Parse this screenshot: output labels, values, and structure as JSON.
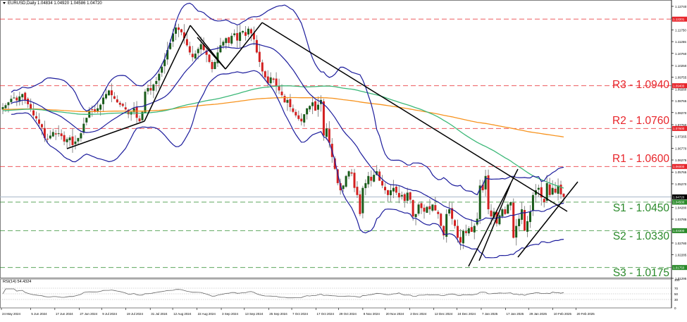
{
  "header": {
    "symbol_line": "EURUSD,Daily  1.04834 1.04920 1.04586 1.04720"
  },
  "rsi": {
    "label": "RSI(14) 54.4324",
    "levels": [
      "100",
      "70",
      "50",
      "30",
      "0"
    ]
  },
  "levels": {
    "r3": {
      "label": "R3 - 1.0940",
      "price": 1.094,
      "tag": "1.09400"
    },
    "r2": {
      "label": "R2 - 1.0760",
      "price": 1.076,
      "tag": "1.07600"
    },
    "r1": {
      "label": "R1 - 1.0600",
      "price": 1.06,
      "tag": "1.06000"
    },
    "top": {
      "label": "",
      "price": 1.12201,
      "tag": "1.12201"
    },
    "s1": {
      "label": "S1 - 1.0450",
      "price": 1.045,
      "tag": "1.04500"
    },
    "s2": {
      "label": "S2 - 1.0330",
      "price": 1.033,
      "tag": "1.03300"
    },
    "s3": {
      "label": "S3 - 1.0175",
      "price": 1.0175,
      "tag": "1.01750"
    },
    "current": {
      "price": 1.0472,
      "tag": "1.04720"
    }
  },
  "colors": {
    "resistance": "#e8242a",
    "support": "#2a8a2a",
    "bull_candle": "#1a5c1a",
    "bear_candle": "#d32020",
    "bollinger": "#1c1c9c",
    "ma_green": "#3cb878",
    "ma_orange": "#f7931e",
    "trendline": "#000000",
    "current_price_line": "#a8b8c8"
  },
  "chart_data": [
    {
      "type": "candlestick",
      "title": "EURUSD,Daily",
      "ohlc_header": {
        "open": 1.04834,
        "high": 1.0492,
        "low": 1.04586,
        "close": 1.0472
      },
      "xlabel": "",
      "ylabel": "",
      "ylim": [
        1.0128,
        1.129
      ],
      "y_ticks": [
        "1.12740",
        "1.12245",
        "1.11750",
        "1.11255",
        "1.10760",
        "1.10250",
        "1.09755",
        "1.09260",
        "1.08765",
        "1.08270",
        "1.07760",
        "1.07265",
        "1.06770",
        "1.06275",
        "1.05765",
        "1.05270",
        "1.04280",
        "1.03785",
        "1.02780",
        "1.02285",
        "1.01295"
      ],
      "x_ticks": [
        "24 May 2024",
        "5 Jun 2024",
        "17 Jun 2024",
        "27 Jun 2024",
        "9 Jul 2024",
        "19 Jul 2024",
        "31 Jul 2024",
        "12 Aug 2024",
        "22 Aug 2024",
        "3 Sep 2024",
        "13 Sep 2024",
        "25 Sep 2024",
        "7 Oct 2024",
        "17 Oct 2024",
        "29 Oct 2024",
        "8 Nov 2024",
        "20 Nov 2024",
        "2 Dec 2024",
        "12 Dec 2024",
        "24 Dec 2024",
        "7 Jan 2025",
        "17 Jan 2025",
        "29 Jan 2025",
        "10 Feb 2025",
        "20 Feb 2025"
      ],
      "horizontal_levels": [
        {
          "name": "R3",
          "value": 1.094
        },
        {
          "name": "R2",
          "value": 1.076
        },
        {
          "name": "R1",
          "value": 1.06
        },
        {
          "name": "S1",
          "value": 1.045
        },
        {
          "name": "S2",
          "value": 1.033
        },
        {
          "name": "S3",
          "value": 1.0175
        },
        {
          "name": "Top",
          "value": 1.12201
        }
      ],
      "series_closes_approx": [
        1.085,
        1.0858,
        1.087,
        1.0885,
        1.089,
        1.0878,
        1.0895,
        1.0905,
        1.088,
        1.0862,
        1.084,
        1.0815,
        1.0802,
        1.078,
        1.0765,
        1.072,
        1.0715,
        1.073,
        1.0745,
        1.0735,
        1.074,
        1.0728,
        1.0705,
        1.0715,
        1.0722,
        1.069,
        1.0705,
        1.072,
        1.074,
        1.078,
        1.0805,
        1.0835,
        1.084,
        1.083,
        1.0845,
        1.086,
        1.089,
        1.0905,
        1.092,
        1.09,
        1.0885,
        1.087,
        1.086,
        1.0855,
        1.084,
        1.082,
        1.083,
        1.0845,
        1.0805,
        1.079,
        1.083,
        1.0915,
        1.093,
        1.092,
        1.0945,
        1.096,
        1.099,
        1.102,
        1.105,
        1.109,
        1.112,
        1.116,
        1.1185,
        1.1175,
        1.1165,
        1.114,
        1.111,
        1.108,
        1.106,
        1.1075,
        1.1095,
        1.1115,
        1.109,
        1.107,
        1.104,
        1.101,
        1.104,
        1.108,
        1.111,
        1.1125,
        1.114,
        1.112,
        1.115,
        1.116,
        1.113,
        1.1165,
        1.117,
        1.115,
        1.118,
        1.116,
        1.1135,
        1.108,
        1.104,
        1.1,
        1.0975,
        1.095,
        1.0975,
        1.0965,
        1.094,
        1.092,
        1.09,
        1.087,
        1.088,
        1.085,
        1.083,
        1.0815,
        1.08,
        1.079,
        1.082,
        1.0845,
        1.0855,
        1.087,
        1.0835,
        1.086,
        1.088,
        1.073,
        1.076,
        1.07,
        1.064,
        1.059,
        1.053,
        1.05,
        1.052,
        1.056,
        1.058,
        1.057,
        1.051,
        1.048,
        1.04,
        1.051,
        1.053,
        1.056,
        1.054,
        1.0565,
        1.058,
        1.054,
        1.052,
        1.05,
        1.048,
        1.05,
        1.051,
        1.049,
        1.047,
        1.048,
        1.0455,
        1.049,
        1.046,
        1.039,
        1.04,
        1.044,
        1.0425,
        1.041,
        1.043,
        1.042,
        1.044,
        1.0415,
        1.04,
        1.035,
        1.031,
        1.04,
        1.042,
        1.038,
        1.035,
        1.03,
        1.028,
        1.033,
        1.032,
        1.034,
        1.0325,
        1.035,
        1.038,
        1.052,
        1.05,
        1.056,
        1.042,
        1.039,
        1.041,
        1.036,
        1.0395,
        1.042,
        1.04,
        1.044,
        1.045,
        1.03,
        1.035,
        1.038,
        1.042,
        1.033,
        1.037,
        1.041,
        1.048,
        1.05,
        1.051,
        1.047,
        1.045,
        1.053,
        1.048,
        1.051,
        1.049,
        1.052,
        1.0483,
        1.0472
      ]
    },
    {
      "type": "line",
      "title": "RSI(14) 54.4324",
      "ylim": [
        0,
        100
      ],
      "y_ticks": [
        "100",
        "70",
        "50",
        "30",
        "0"
      ],
      "grid_levels": [
        70,
        50,
        30
      ],
      "last_value": 54.4324
    }
  ]
}
